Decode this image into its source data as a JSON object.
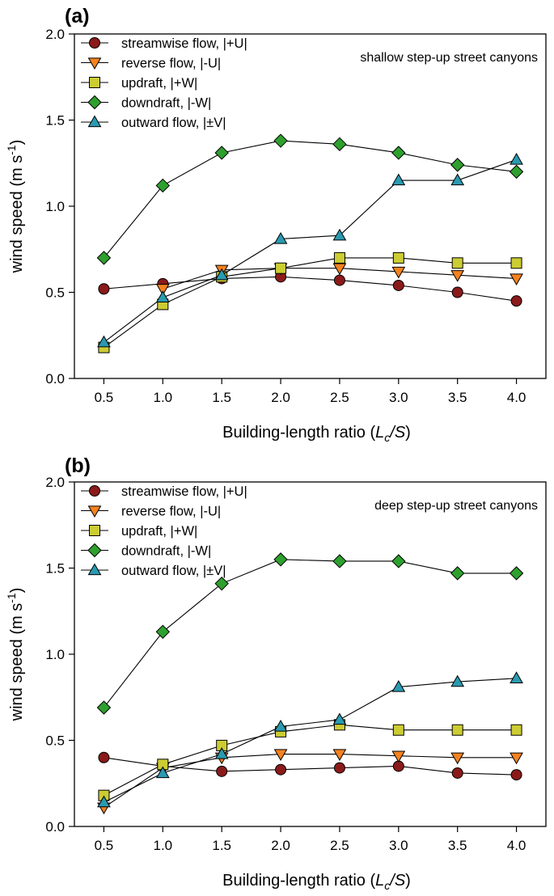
{
  "chart_data": [
    {
      "type": "line",
      "panel_label": "(a)",
      "annotation": "shallow step-up street canyons",
      "ylabel_main": "wind speed (m s",
      "ylabel_sup": "-1",
      "ylabel_close": ")",
      "xlabel_main": "Building-length ratio (",
      "xlabel_L": "L",
      "xlabel_sub": "c",
      "xlabel_rest": "/S",
      "xlabel_close": ")",
      "x": [
        0.5,
        1.0,
        1.5,
        2.0,
        2.5,
        3.0,
        3.5,
        4.0
      ],
      "xticks": [
        "0.5",
        "1.0",
        "1.5",
        "2.0",
        "2.5",
        "3.0",
        "3.5",
        "4.0"
      ],
      "yticks": [
        "0.0",
        "0.5",
        "1.0",
        "1.5",
        "2.0"
      ],
      "ytick_values": [
        0.0,
        0.5,
        1.0,
        1.5,
        2.0
      ],
      "xlim": [
        0.25,
        4.25
      ],
      "ylim": [
        0.0,
        2.0
      ],
      "series": [
        {
          "name": "streamwise flow, |+U|",
          "marker": "circle",
          "color": "#8b1a1a",
          "values": [
            0.52,
            0.55,
            0.58,
            0.59,
            0.57,
            0.54,
            0.5,
            0.45
          ]
        },
        {
          "name": "reverse flow, |-U|",
          "marker": "triangle-down",
          "color": "#f5821f",
          "values": [
            null,
            0.52,
            0.63,
            0.64,
            0.64,
            0.62,
            0.6,
            0.58
          ]
        },
        {
          "name": "updraft, |+W|",
          "marker": "square",
          "color": "#cccc33",
          "values": [
            0.18,
            0.43,
            0.59,
            0.64,
            0.7,
            0.7,
            0.67,
            0.67
          ]
        },
        {
          "name": "downdraft, |-W|",
          "marker": "diamond",
          "color": "#2ea02e",
          "values": [
            0.7,
            1.12,
            1.31,
            1.38,
            1.36,
            1.31,
            1.24,
            1.2
          ]
        },
        {
          "name": "outward flow, |±V|",
          "marker": "triangle-up",
          "color": "#2a9ab0",
          "values": [
            0.21,
            0.47,
            0.6,
            0.81,
            0.83,
            1.15,
            1.15,
            1.27
          ]
        }
      ]
    },
    {
      "type": "line",
      "panel_label": "(b)",
      "annotation": "deep step-up street canyons",
      "ylabel_main": "wind speed (m s",
      "ylabel_sup": "-1",
      "ylabel_close": ")",
      "xlabel_main": "Building-length ratio (",
      "xlabel_L": "L",
      "xlabel_sub": "c",
      "xlabel_rest": "/S",
      "xlabel_close": ")",
      "x": [
        0.5,
        1.0,
        1.5,
        2.0,
        2.5,
        3.0,
        3.5,
        4.0
      ],
      "xticks": [
        "0.5",
        "1.0",
        "1.5",
        "2.0",
        "2.5",
        "3.0",
        "3.5",
        "4.0"
      ],
      "yticks": [
        "0.0",
        "0.5",
        "1.0",
        "1.5",
        "2.0"
      ],
      "ytick_values": [
        0.0,
        0.5,
        1.0,
        1.5,
        2.0
      ],
      "xlim": [
        0.25,
        4.25
      ],
      "ylim": [
        0.0,
        2.0
      ],
      "series": [
        {
          "name": "streamwise flow, |+U|",
          "marker": "circle",
          "color": "#8b1a1a",
          "values": [
            0.4,
            0.35,
            0.32,
            0.33,
            0.34,
            0.35,
            0.31,
            0.3
          ]
        },
        {
          "name": "reverse flow, |-U|",
          "marker": "triangle-down",
          "color": "#f5821f",
          "values": [
            0.11,
            0.34,
            0.4,
            0.42,
            0.42,
            0.41,
            0.4,
            0.4
          ]
        },
        {
          "name": "updraft, |+W|",
          "marker": "square",
          "color": "#cccc33",
          "values": [
            0.18,
            0.36,
            0.47,
            0.55,
            0.59,
            0.56,
            0.56,
            0.56
          ]
        },
        {
          "name": "downdraft, |-W|",
          "marker": "diamond",
          "color": "#2ea02e",
          "values": [
            0.69,
            1.13,
            1.41,
            1.55,
            1.54,
            1.54,
            1.47,
            1.47
          ]
        },
        {
          "name": "outward flow, |±V|",
          "marker": "triangle-up",
          "color": "#2a9ab0",
          "values": [
            0.14,
            0.31,
            0.42,
            0.58,
            0.62,
            0.81,
            0.84,
            0.86
          ]
        }
      ]
    }
  ]
}
